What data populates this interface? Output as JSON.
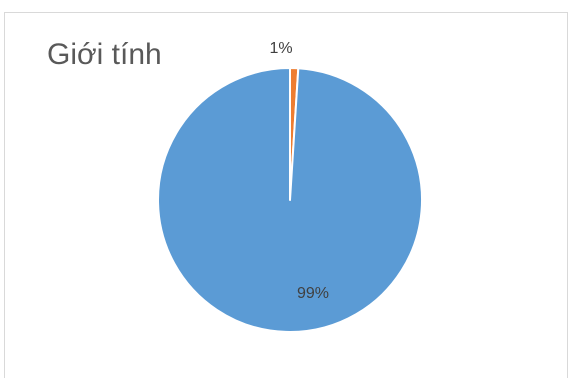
{
  "chart_data": {
    "type": "pie",
    "title": "Giới tính",
    "categories": [
      "",
      ""
    ],
    "values": [
      99,
      1
    ],
    "data_labels": [
      "99%",
      "1%"
    ],
    "colors": [
      "#5B9BD5",
      "#ED7D31"
    ],
    "legend": "none",
    "grid": false
  }
}
